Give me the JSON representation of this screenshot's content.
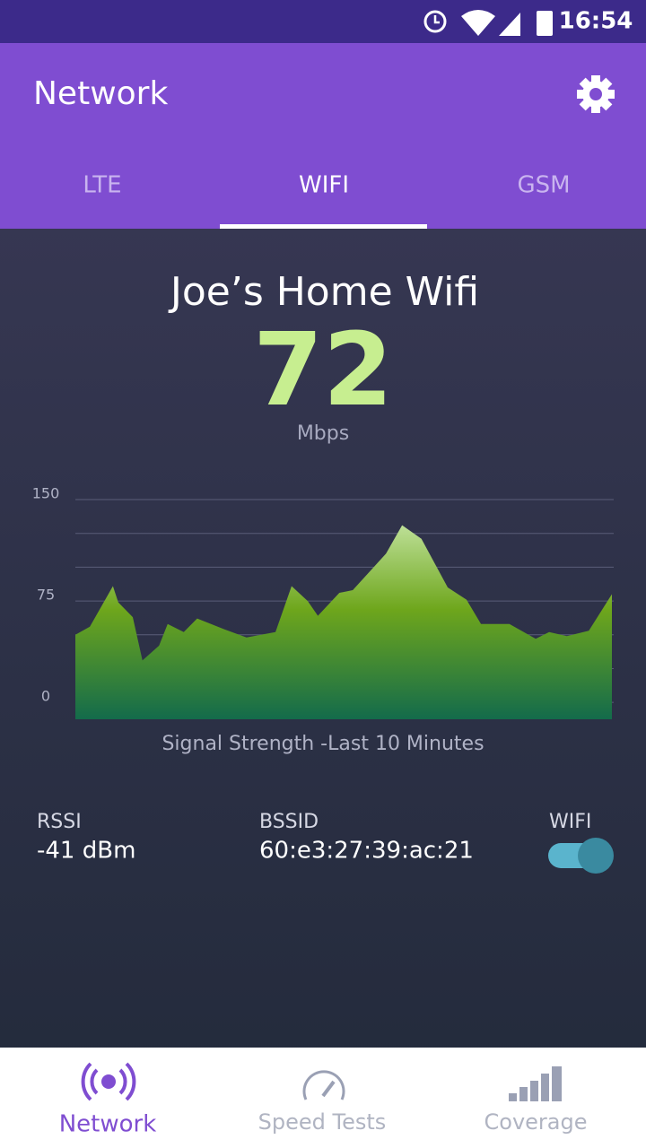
{
  "status_bar": {
    "time": "16:54"
  },
  "app_bar": {
    "title": "Network"
  },
  "tabs": [
    "LTE",
    "WIFI",
    "GSM"
  ],
  "network": {
    "name": "Joe’s Home Wifi",
    "speed": 72,
    "unit": "Mbps"
  },
  "chart_data": {
    "type": "area",
    "xlabel": "Signal Strength -Last 10 Minutes",
    "x": [
      0,
      0.27,
      0.7,
      0.8,
      1.07,
      1.25,
      1.56,
      1.72,
      2.02,
      2.27,
      2.78,
      3.19,
      3.73,
      4.03,
      4.33,
      4.52,
      4.92,
      5.17,
      5.79,
      6.09,
      6.45,
      6.94,
      7.29,
      7.56,
      8.09,
      8.58,
      8.83,
      9.16,
      9.57,
      10
    ],
    "values": [
      50,
      56,
      86,
      74,
      63,
      31,
      42,
      58,
      52,
      62,
      54,
      48,
      52,
      86,
      75,
      64,
      81,
      83,
      110,
      131,
      121,
      85,
      76,
      58,
      58,
      47,
      52,
      49,
      53,
      80
    ],
    "xlim": [
      0,
      10
    ],
    "ylim": [
      -12.5,
      150
    ],
    "yticks": [
      0,
      75,
      150
    ],
    "minor_yticks": [
      25,
      50,
      100,
      125
    ],
    "grid": true
  },
  "details": {
    "rssi_label": "RSSI",
    "rssi_value": "-41 dBm",
    "bssid_label": "BSSID",
    "bssid_value": "60:e3:27:39:ac:21",
    "wifi_label": "WIFI"
  },
  "bottom_nav": [
    "Network",
    "Speed Tests",
    "Coverage"
  ]
}
